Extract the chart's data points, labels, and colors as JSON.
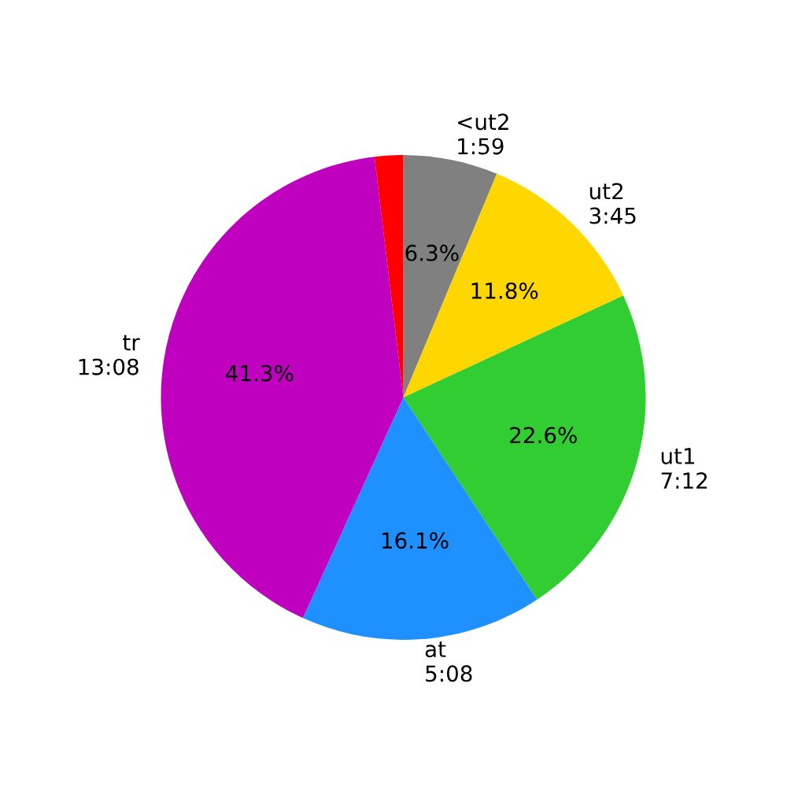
{
  "chart_data": {
    "type": "pie",
    "categories": [
      "<ut2\n1:59",
      "ut2\n3:45",
      "ut1\n7:12",
      "at\n5:08",
      "tr\n13:08",
      null
    ],
    "values": [
      6.3,
      11.8,
      22.6,
      16.1,
      41.3,
      1.9
    ],
    "colors": [
      "#808080",
      "#ffd700",
      "#32cd32",
      "#1e90ff",
      "#bf00bf",
      "#ff0000"
    ],
    "value_labels": [
      "6.3%",
      "11.8%",
      "22.6%",
      "16.1%",
      "41.3%",
      null
    ]
  }
}
